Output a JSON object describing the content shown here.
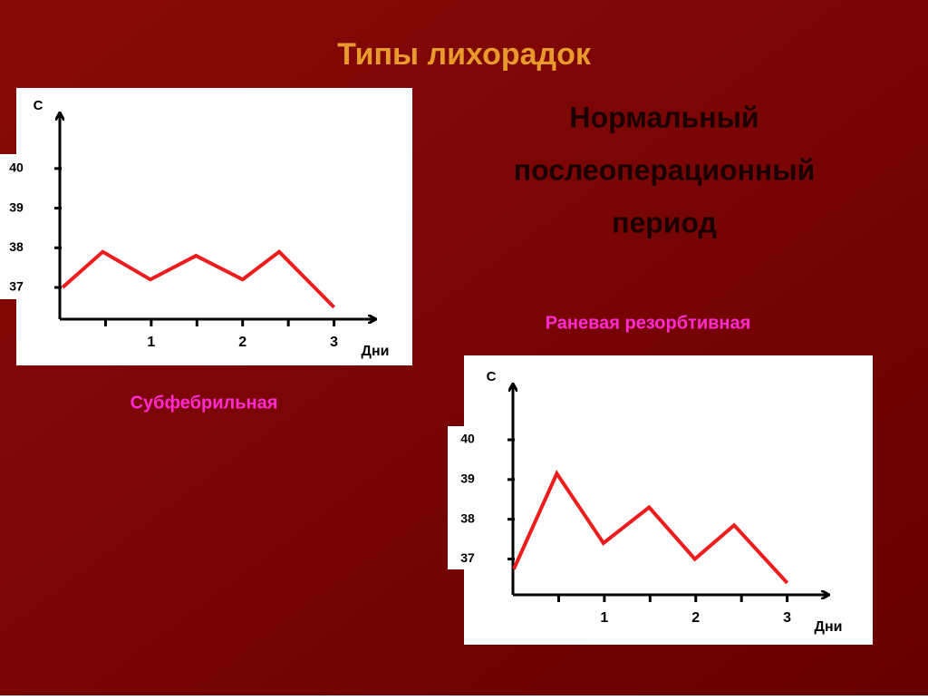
{
  "slide": {
    "title": "Типы лихорадок",
    "heading": [
      "Нормальный",
      "послеоперационный",
      "период"
    ]
  },
  "chart_data": [
    {
      "type": "line",
      "title": "Субфебрильная",
      "ylabel": "С",
      "xlabel": "Дни",
      "color": "#ee1c1c",
      "x": [
        0.03,
        0.47,
        0.99,
        1.49,
        2.0,
        2.4,
        3.0
      ],
      "values": [
        37.0,
        37.9,
        37.2,
        37.8,
        37.2,
        37.9,
        36.5
      ],
      "xlim": [
        0,
        3.45
      ],
      "xticks": [
        1,
        2,
        3
      ],
      "minor_xticks": [
        0.5,
        1.5,
        2.5
      ],
      "ylim": [
        36.2,
        41.3
      ],
      "yticks": [
        37,
        38,
        39,
        40
      ]
    },
    {
      "type": "line",
      "title": "Раневая резорбтивная",
      "ylabel": "С",
      "xlabel": "Дни",
      "color": "#ee1c1c",
      "x": [
        0.01,
        0.48,
        0.99,
        1.49,
        1.99,
        2.42,
        3.0
      ],
      "values": [
        36.75,
        39.15,
        37.4,
        38.3,
        37.0,
        37.85,
        36.4
      ],
      "xlim": [
        0,
        3.45
      ],
      "xticks": [
        1,
        2,
        3
      ],
      "minor_xticks": [
        0.5,
        1.5,
        2.5
      ],
      "ylim": [
        36.1,
        41.3
      ],
      "yticks": [
        37,
        38,
        39,
        40
      ]
    }
  ]
}
